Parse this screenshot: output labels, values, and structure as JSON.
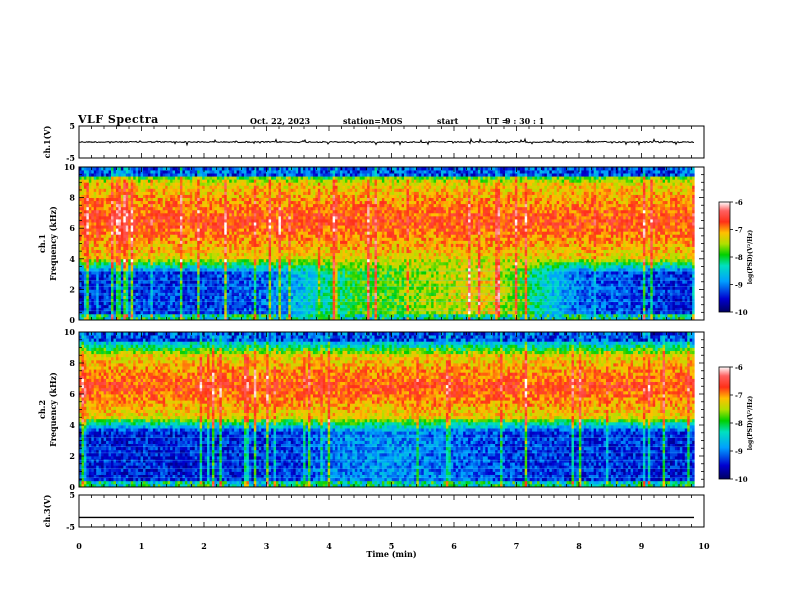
{
  "header": {
    "title": "VLF Spectra",
    "date": "Oct. 22, 2023",
    "station": "station=MOS",
    "start_label": "start",
    "ut_label": "UT =",
    "start_time": "9 : 30 : 1"
  },
  "colors": {
    "low": "#00008b",
    "mid": "#00c800",
    "high": "#ff2a1a",
    "max": "#ffffff",
    "trace": "#000000"
  },
  "chart_data": [
    {
      "type": "line",
      "name": "ch1-waveform",
      "ylabel": "ch.1(V)",
      "ylim": [
        -5,
        5
      ],
      "yticks": [
        "5",
        "-5"
      ],
      "baseline": 0,
      "x_range": [
        0,
        10
      ]
    },
    {
      "type": "heatmap",
      "name": "ch1-spectrogram",
      "ylabel_channel": "ch.1",
      "ylabel": "Frequency (kHz)",
      "ylim": [
        0,
        10
      ],
      "yticks": [
        "0",
        "2",
        "4",
        "6",
        "8",
        "10"
      ],
      "x_range": [
        0,
        9.85
      ],
      "strong_band_khz": [
        4,
        9
      ],
      "low_band_khz": [
        0.5,
        4
      ],
      "low_band_level_vs_time": [
        {
          "t": 0.0,
          "level": -9.4
        },
        {
          "t": 1.0,
          "level": -9.3
        },
        {
          "t": 2.0,
          "level": -9.3
        },
        {
          "t": 3.0,
          "level": -9.1
        },
        {
          "t": 3.5,
          "level": -8.7
        },
        {
          "t": 4.0,
          "level": -8.2
        },
        {
          "t": 4.5,
          "level": -7.9
        },
        {
          "t": 5.0,
          "level": -7.8
        },
        {
          "t": 5.5,
          "level": -7.6
        },
        {
          "t": 6.0,
          "level": -7.4
        },
        {
          "t": 6.5,
          "level": -7.3
        },
        {
          "t": 7.0,
          "level": -7.7
        },
        {
          "t": 7.5,
          "level": -8.5
        },
        {
          "t": 8.0,
          "level": -9.1
        },
        {
          "t": 9.0,
          "level": -9.3
        },
        {
          "t": 9.85,
          "level": -9.4
        }
      ],
      "colorbar": {
        "label": "log(PSD)(V²/Hz)",
        "range": [
          -10,
          -6
        ],
        "ticks": [
          "-6",
          "-7",
          "-8",
          "-9",
          "-10"
        ]
      }
    },
    {
      "type": "heatmap",
      "name": "ch2-spectrogram",
      "ylabel_channel": "ch.2",
      "ylabel": "Frequency (kHz)",
      "ylim": [
        0,
        10
      ],
      "yticks": [
        "0",
        "2",
        "4",
        "6",
        "8",
        "10"
      ],
      "x_range": [
        0,
        9.85
      ],
      "strong_band_khz": [
        4.5,
        8.5
      ],
      "low_band_khz": [
        0.5,
        4
      ],
      "low_band_level_vs_time": [
        {
          "t": 0.0,
          "level": -9.4
        },
        {
          "t": 2.0,
          "level": -9.4
        },
        {
          "t": 3.5,
          "level": -9.3
        },
        {
          "t": 4.0,
          "level": -9.0
        },
        {
          "t": 5.0,
          "level": -8.9
        },
        {
          "t": 6.0,
          "level": -9.1
        },
        {
          "t": 7.0,
          "level": -9.3
        },
        {
          "t": 9.85,
          "level": -9.4
        }
      ],
      "colorbar": {
        "label": "log(PSD)(V²/Hz)",
        "range": [
          -10,
          -6
        ],
        "ticks": [
          "-6",
          "-7",
          "-8",
          "-9",
          "-10"
        ]
      }
    },
    {
      "type": "line",
      "name": "ch3-waveform",
      "ylabel": "ch.3(V)",
      "ylim": [
        -5,
        5
      ],
      "yticks": [
        "5",
        "-5"
      ],
      "baseline": -2,
      "x_range": [
        0,
        10
      ]
    }
  ],
  "xaxis": {
    "label": "Time (min)",
    "ticks": [
      "0",
      "1",
      "2",
      "3",
      "4",
      "5",
      "6",
      "7",
      "8",
      "9",
      "10"
    ]
  }
}
